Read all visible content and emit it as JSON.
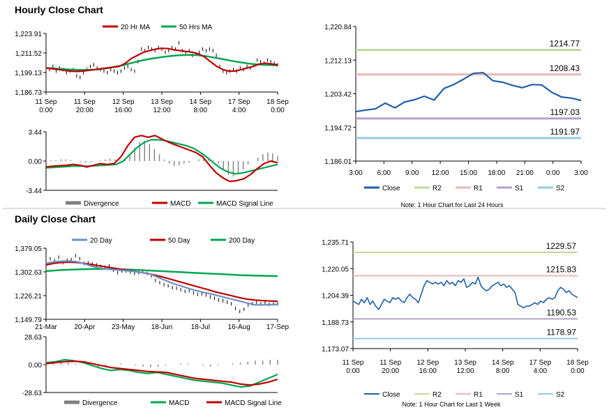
{
  "sections": {
    "hourly_title": "Hourly Close Chart",
    "daily_title": "Daily Close Chart"
  },
  "chart_data": [
    {
      "id": "hourly_price",
      "type": "line",
      "ylim": [
        1186.73,
        1223.91
      ],
      "yticks": [
        "1,223.91",
        "1,211.52",
        "1,199.13",
        "1,186.73"
      ],
      "xticks": [
        [
          "11 Sep",
          "0:00"
        ],
        [
          "11 Sep",
          "20:00"
        ],
        [
          "12 Sep",
          "16:00"
        ],
        [
          "13 Sep",
          "12:00"
        ],
        [
          "14 Sep",
          "8:00"
        ],
        [
          "17 Sep",
          "4:00"
        ],
        [
          "18 Sep",
          "0:00"
        ]
      ],
      "legend": [
        "20 Hr MA",
        "50 Hrs MA"
      ],
      "series": [
        {
          "name": "Close",
          "color": "#000000",
          "kind": "bar",
          "values": [
            1202,
            1201,
            1203,
            1200,
            1202,
            1201,
            1199,
            1200,
            1201,
            1197,
            1196,
            1199,
            1201,
            1203,
            1204,
            1202,
            1201,
            1200,
            1199,
            1201,
            1200,
            1199,
            1200,
            1202,
            1203,
            1201,
            1200,
            1206,
            1214,
            1213,
            1215,
            1214,
            1213,
            1215,
            1214,
            1212,
            1213,
            1215,
            1214,
            1218,
            1213,
            1212,
            1213,
            1210,
            1211,
            1212,
            1214,
            1213,
            1214,
            1213,
            1210,
            1203,
            1200,
            1199,
            1200,
            1201,
            1200,
            1202,
            1201,
            1203,
            1202,
            1204,
            1207,
            1206,
            1205,
            1207,
            1206,
            1205,
            1204
          ]
        },
        {
          "name": "20 Hr MA",
          "color": "#c00000",
          "kind": "line",
          "values": [
            1202,
            1201.5,
            1201,
            1200.5,
            1200,
            1199.8,
            1200,
            1200.5,
            1201,
            1201.5,
            1202,
            1202.5,
            1203,
            1205,
            1208,
            1210,
            1212,
            1213,
            1214,
            1214.5,
            1214.3,
            1213.5,
            1213,
            1212.5,
            1212,
            1211,
            1209,
            1206,
            1203,
            1201,
            1200,
            1200,
            1201,
            1202,
            1203,
            1204.5,
            1205,
            1204.5,
            1204
          ]
        },
        {
          "name": "50 Hrs MA",
          "color": "#00a651",
          "kind": "line",
          "values": [
            1202,
            1201.8,
            1201.5,
            1201.2,
            1201,
            1200.8,
            1200.7,
            1200.8,
            1201,
            1201.5,
            1202,
            1202.8,
            1203.5,
            1204.5,
            1205.5,
            1206.5,
            1207.3,
            1208,
            1208.6,
            1209.2,
            1209.6,
            1210,
            1210.2,
            1210.3,
            1210.2,
            1209.8,
            1209.2,
            1208.5,
            1207.8,
            1207,
            1206.3,
            1205.6,
            1205,
            1204.5,
            1204.2,
            1204,
            1203.8,
            1203.6
          ]
        }
      ]
    },
    {
      "id": "hourly_macd",
      "type": "line",
      "ylim": [
        -3.44,
        3.44
      ],
      "yticks": [
        "3.44",
        "0.00",
        "-3.44"
      ],
      "legend": [
        "Divergence",
        "MACD",
        "MACD Signal Line"
      ],
      "series": [
        {
          "name": "Divergence",
          "color": "#808080",
          "kind": "bar",
          "values": [
            0,
            0.1,
            0.1,
            0.2,
            0.2,
            0.1,
            0,
            -0.1,
            -0.2,
            -0.1,
            0,
            0.1,
            0.2,
            0.3,
            0.2,
            0.1,
            0.3,
            0.8,
            1.6,
            2.2,
            2.4,
            2.0,
            1.4,
            0.8,
            0.2,
            -0.3,
            -0.6,
            -0.5,
            -0.3,
            -0.2,
            0,
            0.2,
            0.4,
            0.3,
            0.1,
            -0.3,
            -1.0,
            -1.6,
            -1.8,
            -1.5,
            -1.0,
            -0.4,
            0,
            0.4,
            0.8,
            1.0,
            0.9,
            0.6
          ]
        },
        {
          "name": "MACD",
          "color": "#c00000",
          "kind": "line",
          "values": [
            -0.7,
            -0.6,
            -0.55,
            -0.5,
            -0.4,
            -0.5,
            -0.7,
            -0.5,
            -0.3,
            -0.4,
            -0.3,
            0.5,
            1.8,
            2.8,
            3.0,
            2.8,
            3.0,
            2.6,
            2.2,
            1.9,
            1.6,
            1.3,
            1.0,
            0.5,
            -0.5,
            -1.4,
            -2.0,
            -2.4,
            -2.3,
            -2.1,
            -1.6,
            -0.9,
            -0.3,
            0,
            -0.2
          ]
        },
        {
          "name": "MACD Signal Line",
          "color": "#00a651",
          "kind": "line",
          "values": [
            -0.8,
            -0.75,
            -0.7,
            -0.65,
            -0.6,
            -0.6,
            -0.6,
            -0.55,
            -0.5,
            -0.45,
            -0.4,
            0,
            0.8,
            1.6,
            2.2,
            2.5,
            2.5,
            2.4,
            2.2,
            2.0,
            1.8,
            1.5,
            1.0,
            0.4,
            -0.3,
            -0.9,
            -1.3,
            -1.5,
            -1.4,
            -1.2,
            -1.0,
            -0.8,
            -0.6,
            -0.4
          ]
        }
      ]
    },
    {
      "id": "hourly_pivot",
      "type": "line",
      "ylim": [
        1186.01,
        1220.84
      ],
      "yticks": [
        "1,220.84",
        "1,212.13",
        "1,203.42",
        "1,194.72",
        "1,186.01"
      ],
      "categories": [
        "3:00",
        "6:00",
        "9:00",
        "12:00",
        "15:00",
        "18:00",
        "21:00",
        "0:00",
        "3:00"
      ],
      "levels": [
        {
          "name": "R2",
          "value": 1214.77,
          "label": "1214.77",
          "color": "#c4d79b"
        },
        {
          "name": "R1",
          "value": 1208.43,
          "label": "1208.43",
          "color": "#e6b9b8"
        },
        {
          "name": "S1",
          "value": 1197.03,
          "label": "1197.03",
          "color": "#b3a2c7"
        },
        {
          "name": "S2",
          "value": 1191.97,
          "label": "1191.97",
          "color": "#93cddd"
        }
      ],
      "close": {
        "name": "Close",
        "color": "#1f5fa8",
        "values": [
          1198.8,
          1199.2,
          1199.5,
          1201.0,
          1199.8,
          1201.3,
          1201.9,
          1202.8,
          1201.8,
          1204.8,
          1205.8,
          1207.2,
          1208.7,
          1208.9,
          1206.8,
          1206.4,
          1205.6,
          1205.0,
          1205.8,
          1205.7,
          1203.8,
          1202.6,
          1202.3,
          1201.7
        ]
      },
      "legend": [
        "Close",
        "R2",
        "R1",
        "S1",
        "S2"
      ],
      "note": "Note: 1 Hour Chart for Last 24 Hours"
    },
    {
      "id": "daily_price",
      "type": "line",
      "ylim": [
        1149.79,
        1379.05
      ],
      "yticks": [
        "1,379.05",
        "1,302.63",
        "1,226.21",
        "1,149.79"
      ],
      "xticks": [
        "21-Mar",
        "20-Apr",
        "23-May",
        "18-Jun",
        "18-Jul",
        "16-Aug",
        "17-Sep"
      ],
      "legend": [
        "20 Day",
        "50 Day",
        "200 Day"
      ],
      "series": [
        {
          "name": "Close",
          "color": "#000000",
          "kind": "bar",
          "values": [
            1330,
            1345,
            1338,
            1350,
            1332,
            1340,
            1342,
            1355,
            1345,
            1330,
            1332,
            1328,
            1325,
            1320,
            1318,
            1322,
            1308,
            1300,
            1306,
            1305,
            1302,
            1298,
            1300,
            1303,
            1298,
            1290,
            1275,
            1268,
            1262,
            1258,
            1252,
            1250,
            1245,
            1240,
            1242,
            1235,
            1230,
            1232,
            1228,
            1222,
            1218,
            1212,
            1210,
            1205,
            1200,
            1185,
            1175,
            1182,
            1195,
            1200,
            1205,
            1200,
            1203,
            1198,
            1199,
            1200
          ]
        },
        {
          "name": "20 Day",
          "color": "#6f8fc8",
          "kind": "line",
          "values": [
            1330,
            1335,
            1337,
            1338,
            1336,
            1330,
            1322,
            1316,
            1312,
            1310,
            1308,
            1306,
            1303,
            1300,
            1295,
            1285,
            1275,
            1265,
            1258,
            1250,
            1243,
            1237,
            1232,
            1226,
            1220,
            1214,
            1208,
            1202,
            1196,
            1196,
            1197,
            1198
          ]
        },
        {
          "name": "50 Day",
          "color": "#c00000",
          "kind": "line",
          "values": [
            1325,
            1330,
            1333,
            1334,
            1333,
            1330,
            1326,
            1322,
            1318,
            1314,
            1310,
            1306,
            1302,
            1298,
            1293,
            1287,
            1280,
            1273,
            1266,
            1259,
            1252,
            1245,
            1238,
            1232,
            1226,
            1220,
            1215,
            1212,
            1210,
            1209,
            1208
          ]
        },
        {
          "name": "200 Day",
          "color": "#00a651",
          "kind": "line",
          "values": [
            1305,
            1308,
            1310,
            1311,
            1312,
            1312,
            1311,
            1310,
            1308,
            1306,
            1304,
            1302,
            1300,
            1298,
            1296,
            1294,
            1292,
            1291,
            1290,
            1289
          ]
        }
      ]
    },
    {
      "id": "daily_macd",
      "type": "line",
      "ylim": [
        -28.63,
        28.63
      ],
      "yticks": [
        "28.63",
        "0.00",
        "-28.63"
      ],
      "legend": [
        "Divergence",
        "MACD",
        "MACD Signal Line"
      ],
      "series": [
        {
          "name": "Divergence",
          "color": "#808080",
          "kind": "bar",
          "values": [
            1,
            2,
            3,
            2,
            1,
            0,
            -1,
            -2,
            -1,
            0,
            1,
            0,
            -1,
            -2,
            -3,
            -2,
            -1,
            0,
            1,
            1,
            0,
            -1,
            -2,
            -1,
            0,
            1,
            2,
            3,
            4,
            4,
            5,
            5
          ]
        },
        {
          "name": "MACD",
          "color": "#00a651",
          "kind": "line",
          "values": [
            2,
            3,
            5,
            4,
            2,
            -1,
            -4,
            -6,
            -5,
            -6,
            -8,
            -9,
            -8,
            -10,
            -12,
            -14,
            -16,
            -17,
            -18,
            -19,
            -21,
            -23,
            -22,
            -18,
            -14,
            -10
          ]
        },
        {
          "name": "MACD Signal Line",
          "color": "#c00000",
          "kind": "line",
          "values": [
            1,
            2,
            3,
            3.5,
            3,
            1,
            -1,
            -3,
            -4,
            -5,
            -6,
            -7,
            -7.5,
            -8,
            -10,
            -12,
            -14,
            -15,
            -16,
            -17,
            -18,
            -20,
            -21,
            -20,
            -18,
            -15
          ]
        }
      ]
    },
    {
      "id": "daily_pivot",
      "type": "line",
      "ylim": [
        1173.07,
        1235.71
      ],
      "yticks": [
        "1,235.71",
        "1,220.05",
        "1,204.39",
        "1,188.73",
        "1,173.07"
      ],
      "xticks": [
        [
          "11 Sep",
          "0:00"
        ],
        [
          "11 Sep",
          "20:00"
        ],
        [
          "12 Sep",
          "16:00"
        ],
        [
          "13 Sep",
          "12:00"
        ],
        [
          "14 Sep",
          "8:00"
        ],
        [
          "17 Sep",
          "4:00"
        ],
        [
          "18 Sep",
          "0:00"
        ]
      ],
      "levels": [
        {
          "name": "R2",
          "value": 1229.57,
          "label": "1229.57",
          "color": "#c4d79b"
        },
        {
          "name": "R1",
          "value": 1215.83,
          "label": "1215.83",
          "color": "#e6b9b8"
        },
        {
          "name": "S1",
          "value": 1190.53,
          "label": "1190.53",
          "color": "#b3a2c7"
        },
        {
          "name": "S2",
          "value": 1178.97,
          "label": "1178.97",
          "color": "#93cddd"
        }
      ],
      "close": {
        "name": "Close",
        "color": "#1f5fa8",
        "values": [
          1201,
          1200,
          1199,
          1202,
          1200,
          1203,
          1199,
          1201,
          1198,
          1196,
          1199,
          1202,
          1201,
          1200,
          1203,
          1202,
          1203,
          1201,
          1200,
          1203,
          1205,
          1203,
          1202,
          1200,
          1205,
          1210,
          1213,
          1212,
          1211,
          1212,
          1211,
          1212,
          1210,
          1213,
          1211,
          1212,
          1210,
          1213,
          1212,
          1214,
          1209,
          1210,
          1212,
          1211,
          1215,
          1210,
          1208,
          1207,
          1208,
          1210,
          1211,
          1212,
          1210,
          1211,
          1209,
          1210,
          1208,
          1206,
          1199,
          1198,
          1197,
          1198,
          1198,
          1199,
          1200,
          1199,
          1201,
          1200,
          1202,
          1203,
          1202,
          1203,
          1207,
          1209,
          1208,
          1206,
          1207,
          1205,
          1204,
          1203
        ]
      },
      "legend": [
        "Close",
        "R2",
        "R1",
        "S1",
        "S2"
      ],
      "note": "Note: 1 Hour Chart for Last 1 Week"
    }
  ]
}
